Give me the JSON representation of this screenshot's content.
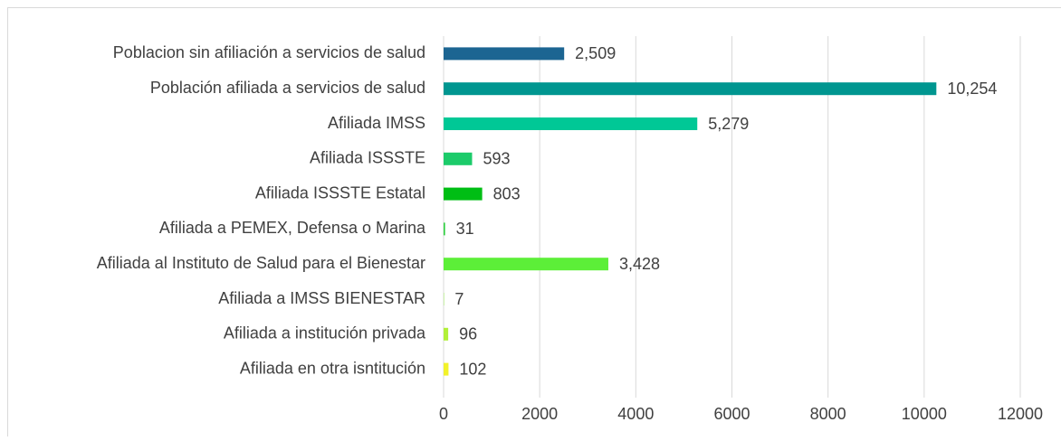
{
  "chart_data": {
    "type": "barh",
    "categories": [
      "Poblacion sin afiliación a servicios de salud",
      "Población afiliada a servicios de salud",
      "Afiliada IMSS",
      "Afiliada ISSSTE",
      "Afiliada ISSSTE Estatal",
      "Afiliada a PEMEX, Defensa o Marina",
      "Afiliada al Instituto de Salud para el Bienestar",
      "Afiliada a IMSS BIENESTAR",
      "Afiliada a institución privada",
      "Afiliada en otra isntitución"
    ],
    "values": [
      2509,
      10254,
      5279,
      593,
      803,
      31,
      3428,
      7,
      96,
      102
    ],
    "value_labels": [
      "2,509",
      "10,254",
      "5,279",
      "593",
      "803",
      "31",
      "3,428",
      "7",
      "96",
      "102"
    ],
    "colors": [
      "#1c6592",
      "#009690",
      "#00c896",
      "#1ccb6a",
      "#00be14",
      "#2fd040",
      "#5cef38",
      "#86ec30",
      "#b2f038",
      "#f2f22a"
    ],
    "xlim": [
      0,
      12000
    ],
    "xticks": [
      0,
      2000,
      4000,
      6000,
      8000,
      10000,
      12000
    ],
    "grid": true
  }
}
